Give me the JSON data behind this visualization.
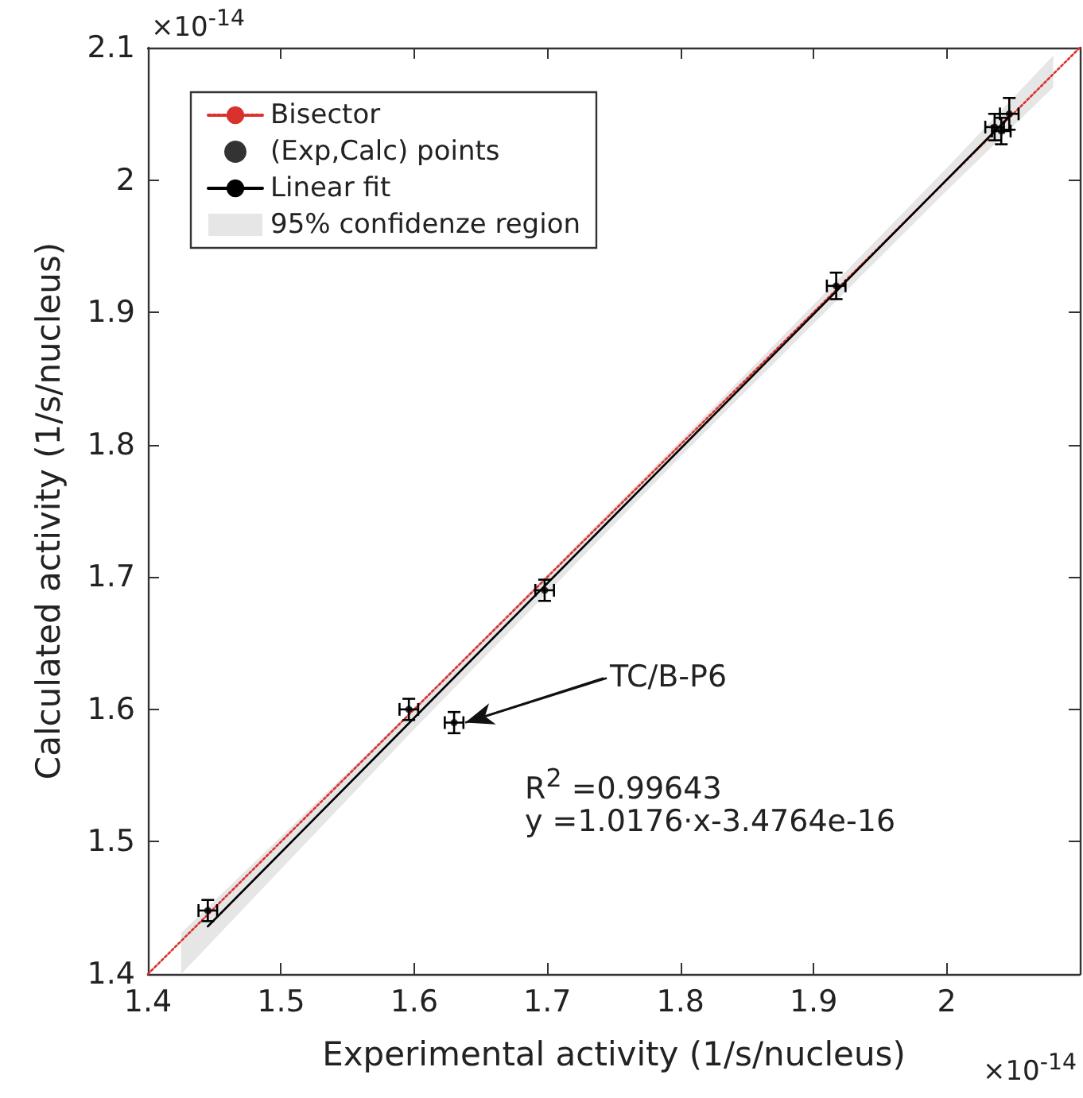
{
  "chart_data": {
    "type": "scatter",
    "xlabel": "Experimental activity (1/s/nucleus)",
    "ylabel": "Calculated activity (1/s/nucleus)",
    "xlim": [
      1.4,
      2.1
    ],
    "ylim": [
      1.4,
      2.1
    ],
    "xticks": [
      1.4,
      1.5,
      1.6,
      1.7,
      1.8,
      1.9,
      2
    ],
    "yticks": [
      1.4,
      1.5,
      1.6,
      1.7,
      1.8,
      1.9,
      2,
      2.1
    ],
    "grid": false,
    "legend": "top left",
    "series": [
      {
        "name": "Bisector",
        "type": "line",
        "color": "#d9322e",
        "line_style": "dotted",
        "x": [
          1.4,
          2.1
        ],
        "values": [
          1.4,
          2.1
        ]
      },
      {
        "name": "(Exp,Calc) points",
        "color": "#000000",
        "marker": "circle",
        "x": [
          1.445,
          1.596,
          1.63,
          1.698,
          1.917,
          2.036,
          2.041,
          2.047
        ],
        "values": [
          1.448,
          1.6,
          1.59,
          1.69,
          1.92,
          2.04,
          2.037,
          2.05
        ],
        "errors": [
          0.008,
          0.008,
          0.008,
          0.008,
          0.01,
          0.01,
          0.01,
          0.012
        ],
        "xerrors": [
          0.007,
          0.007,
          0.007,
          0.007,
          0.007,
          0.007,
          0.007,
          0.007
        ]
      },
      {
        "name": "Linear fit",
        "type": "line",
        "color": "#000000",
        "line_style": "solid",
        "x": [
          1.445,
          2.047
        ],
        "values": [
          1.436,
          2.048
        ]
      },
      {
        "name": "95% confidenze region",
        "type": "area",
        "color": "#e6e6e6",
        "x": [
          1.425,
          1.6,
          1.8,
          2.0,
          2.08
        ],
        "values": [
          null,
          null,
          null,
          null,
          null
        ],
        "lower": [
          1.4,
          1.585,
          1.791,
          1.992,
          2.07
        ],
        "upper": [
          1.431,
          1.601,
          1.803,
          2.009,
          2.094
        ]
      }
    ],
    "annotations": [
      "×10$^{-14}$",
      "×10$^{-14}$",
      "R$^{2}$ =0.99643",
      "y =1.0176·x-3.4764e-16",
      {
        "text": "TC/B-P6",
        "x": 1.63,
        "y": 1.59
      }
    ]
  }
}
